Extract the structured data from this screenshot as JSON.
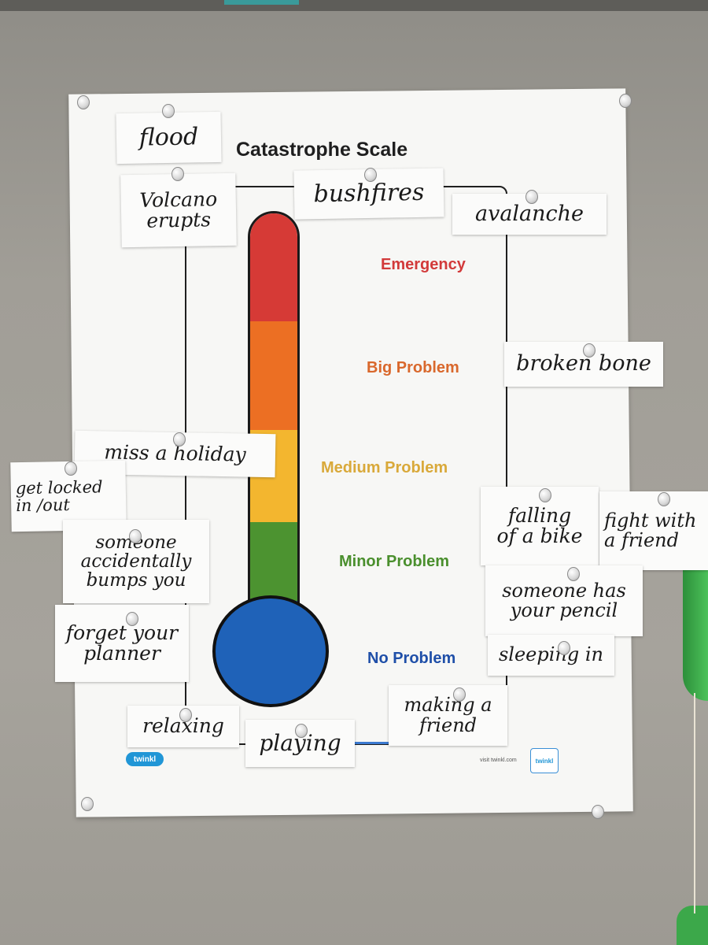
{
  "poster": {
    "title": "Catastrophe Scale",
    "levels": [
      {
        "label": "Emergency",
        "color": "#d23a3a"
      },
      {
        "label": "Big Problem",
        "color": "#d9682c"
      },
      {
        "label": "Medium Problem",
        "color": "#d9a93a"
      },
      {
        "label": "Minor Problem",
        "color": "#4a8f2d"
      },
      {
        "label": "No Problem",
        "color": "#1f4fa8"
      }
    ],
    "thermometer_colors": {
      "red": "#d63a36",
      "orange": "#ec6f23",
      "yellow": "#f3b62f",
      "green": "#4c9330",
      "blue": "#1f62b8"
    },
    "logo_left": "twinkl",
    "logo_right": "twinkl",
    "footer_text": "visit twinkl.com"
  },
  "cards": {
    "flood": "flood",
    "volcano": "Volcano\nerupts",
    "bushfires": "bushfires",
    "avalanche": "avalanche",
    "broken_bone": "broken bone",
    "miss_holiday": "miss a holiday",
    "locked_out": "get locked\nin /out",
    "bumps": "someone\naccidentally\nbumps you",
    "planner": "forget your\nplanner",
    "falling_bike": "falling\nof a bike",
    "fight_friend": "fight with\na friend",
    "pencil": "someone has\nyour pencil",
    "sleeping": "sleeping in",
    "making_friend": "making a\nfriend",
    "relaxing": "relaxing",
    "playing": "playing"
  }
}
